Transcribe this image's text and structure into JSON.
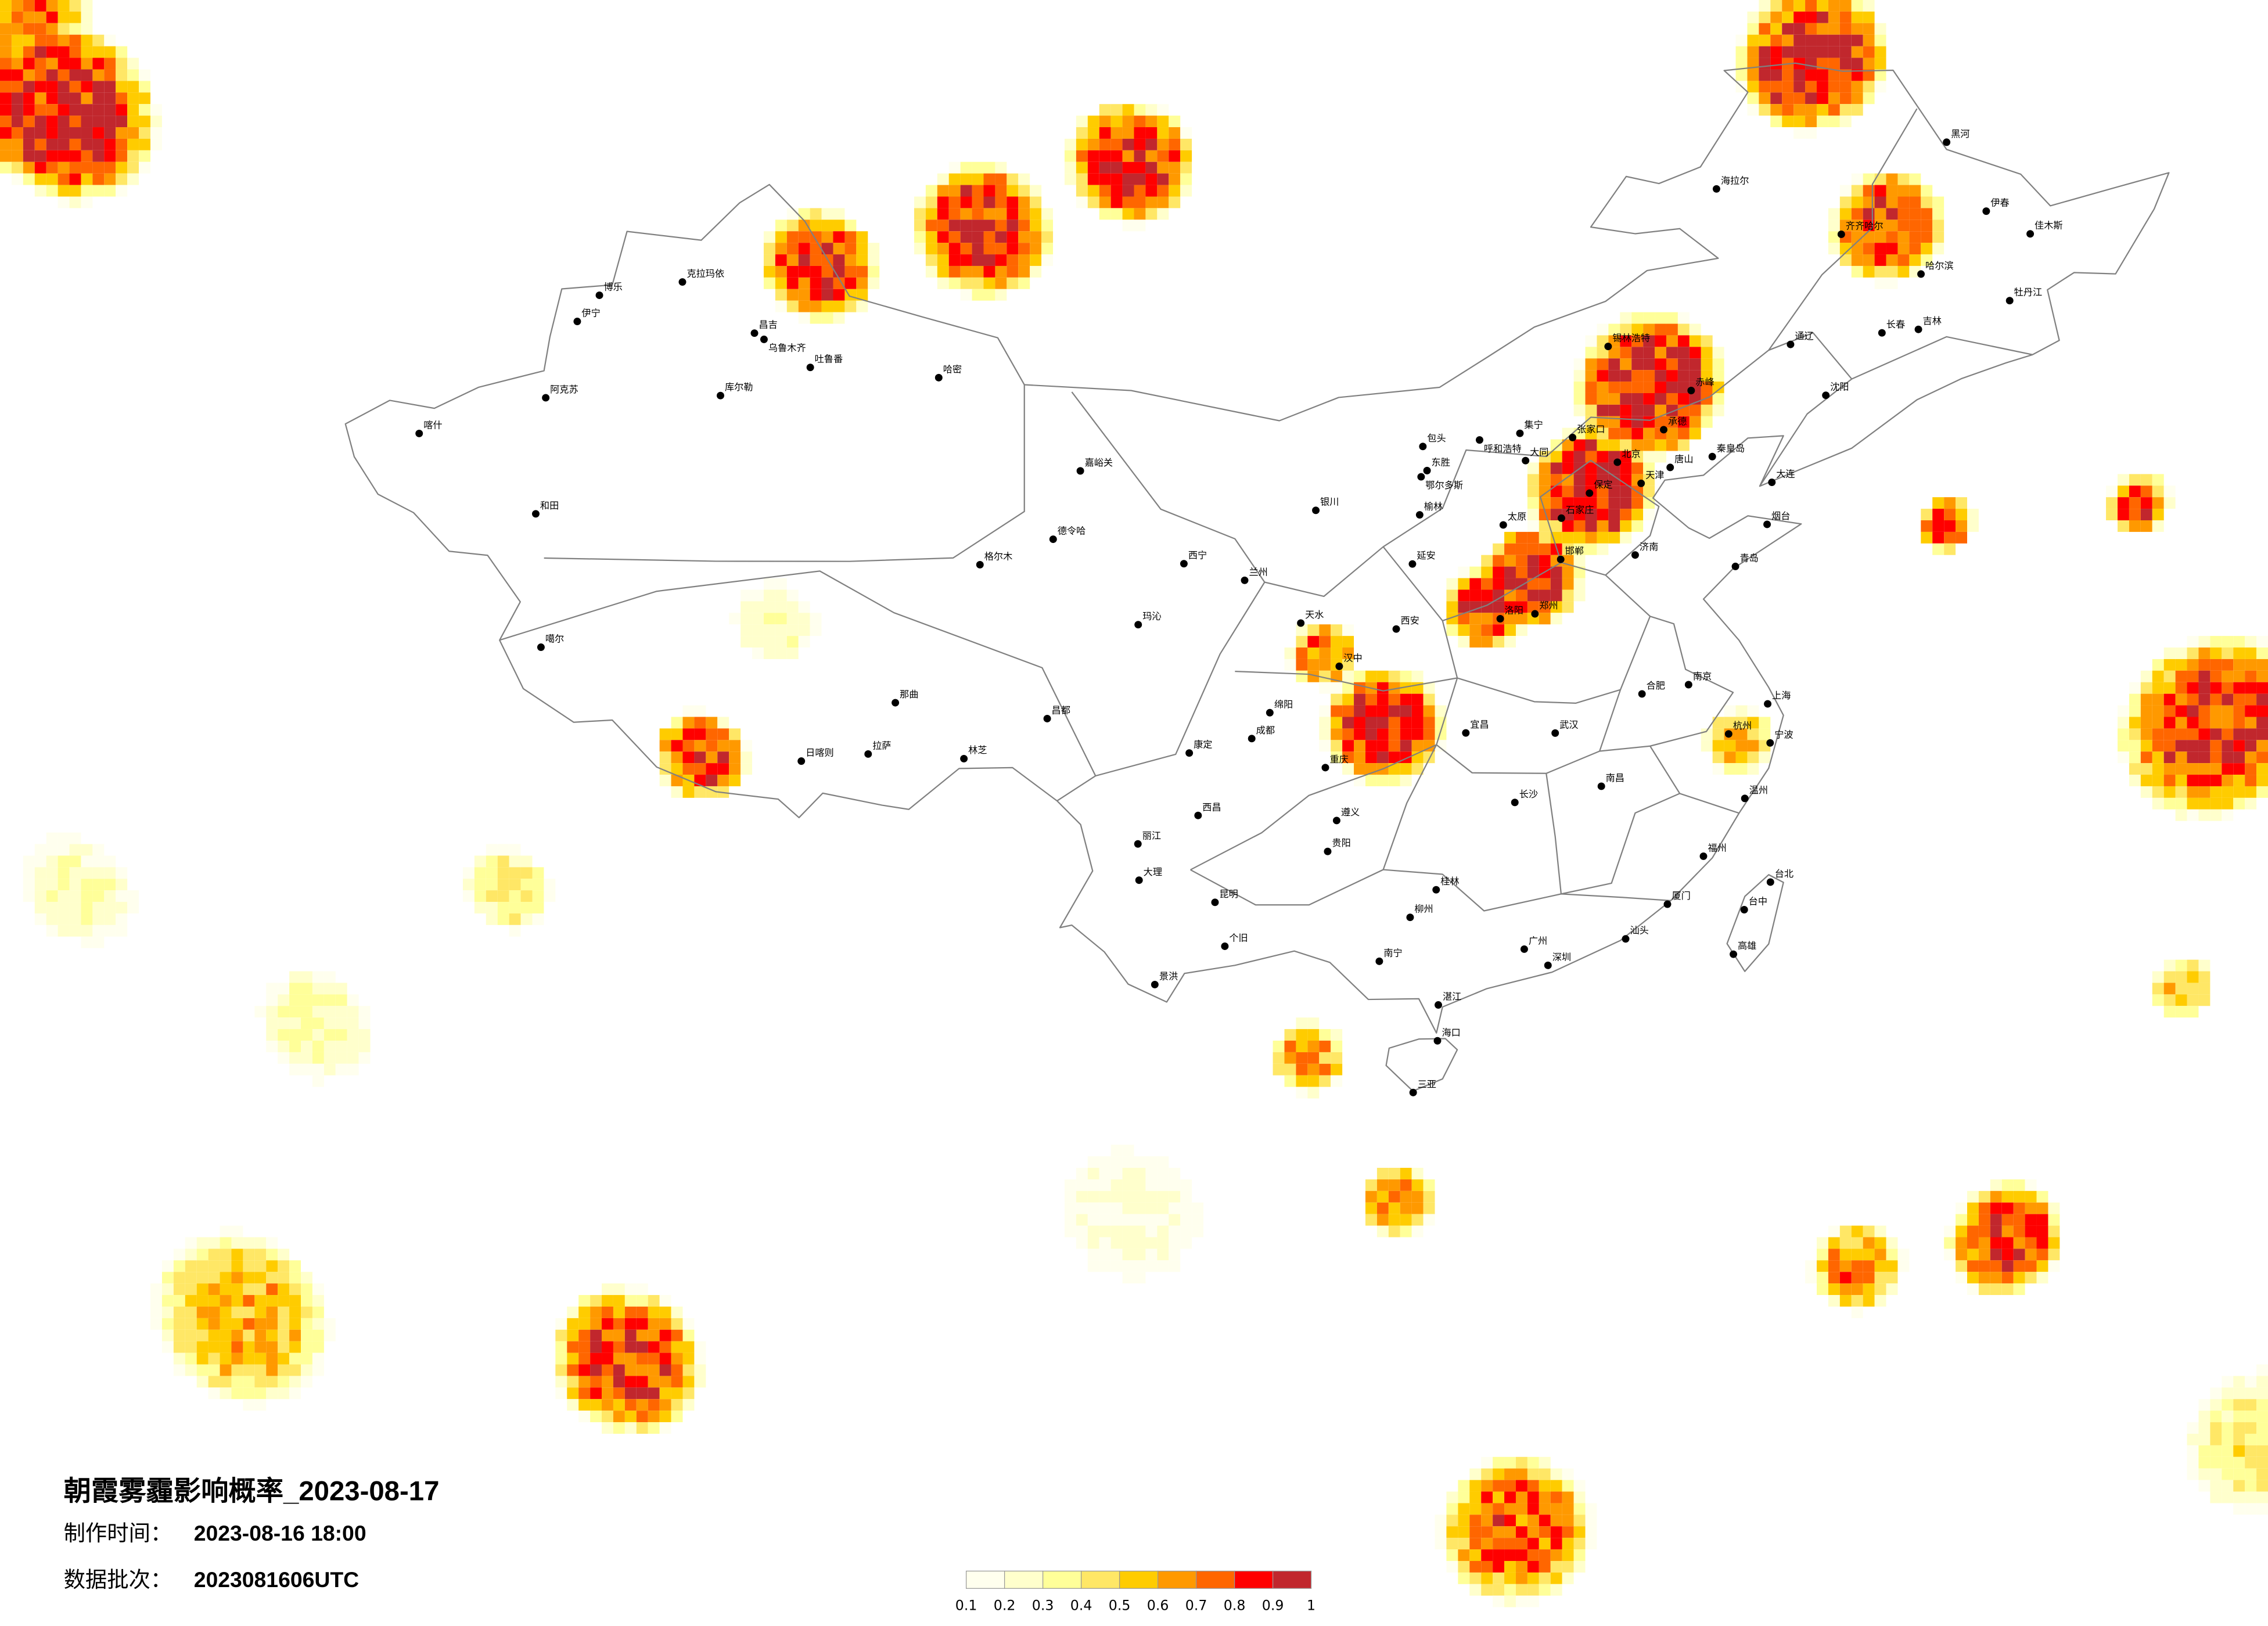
{
  "title": "朝霞雾霾影响概率_2023-08-17",
  "production_time": {
    "label": "制作时间：",
    "value": "2023-08-16 18:00"
  },
  "data_batch": {
    "label": "数据批次：",
    "value": "2023081606UTC"
  },
  "legend": {
    "ticks": [
      "0.1",
      "0.2",
      "0.3",
      "0.4",
      "0.5",
      "0.6",
      "0.7",
      "0.8",
      "0.9",
      "1"
    ],
    "colors": [
      "#FFFFEE",
      "#FFFFCC",
      "#FFFF99",
      "#FFE766",
      "#FFCC00",
      "#FF9900",
      "#FF6600",
      "#FF0000",
      "#C1272D"
    ]
  },
  "border_color": "#808080",
  "haze_regions": [
    {
      "lon": 117.5,
      "lat": 42.5,
      "r": 2.6,
      "p": 1.0
    },
    {
      "lon": 115.5,
      "lat": 39.0,
      "r": 2.2,
      "p": 1.0
    },
    {
      "lon": 113.5,
      "lat": 36.0,
      "r": 1.8,
      "p": 0.97
    },
    {
      "lon": 112.0,
      "lat": 35.0,
      "r": 1.5,
      "p": 0.9
    },
    {
      "lon": 123.0,
      "lat": 53.5,
      "r": 2.6,
      "p": 0.97
    },
    {
      "lon": 125.5,
      "lat": 47.5,
      "r": 2.0,
      "p": 0.9
    },
    {
      "lon": 64.0,
      "lat": 49.0,
      "r": 3.2,
      "p": 0.97
    },
    {
      "lon": 62.5,
      "lat": 53.0,
      "r": 2.5,
      "p": 0.8
    },
    {
      "lon": 89.5,
      "lat": 46.5,
      "r": 2.0,
      "p": 0.97
    },
    {
      "lon": 95.0,
      "lat": 48.0,
      "r": 2.4,
      "p": 0.92
    },
    {
      "lon": 100.0,
      "lat": 50.5,
      "r": 2.2,
      "p": 0.92
    },
    {
      "lon": 108.5,
      "lat": 31.0,
      "r": 2.1,
      "p": 0.95
    },
    {
      "lon": 106.5,
      "lat": 33.5,
      "r": 1.2,
      "p": 0.8
    },
    {
      "lon": 136.5,
      "lat": 29.0,
      "r": 3.2,
      "p": 0.92
    },
    {
      "lon": 127.5,
      "lat": 37.0,
      "r": 1.0,
      "p": 0.8
    },
    {
      "lon": 134.0,
      "lat": 37.0,
      "r": 1.1,
      "p": 0.85
    },
    {
      "lon": 85.5,
      "lat": 29.2,
      "r": 1.6,
      "p": 0.88
    },
    {
      "lon": 106.0,
      "lat": 19.5,
      "r": 1.3,
      "p": 0.7
    },
    {
      "lon": 83.0,
      "lat": 8.0,
      "r": 2.6,
      "p": 0.88
    },
    {
      "lon": 70.0,
      "lat": 8.0,
      "r": 3.0,
      "p": 0.65
    },
    {
      "lon": 129.5,
      "lat": 12.0,
      "r": 2.0,
      "p": 0.88
    },
    {
      "lon": 124.5,
      "lat": 11.5,
      "r": 1.6,
      "p": 0.72
    },
    {
      "lon": 113.0,
      "lat": 3.0,
      "r": 2.6,
      "p": 0.82
    },
    {
      "lon": 72.5,
      "lat": 18.5,
      "r": 2.0,
      "p": 0.35
    },
    {
      "lon": 109.0,
      "lat": 14.5,
      "r": 1.3,
      "p": 0.7
    },
    {
      "lon": 135.5,
      "lat": 20.0,
      "r": 1.1,
      "p": 0.6
    },
    {
      "lon": 120.5,
      "lat": 30.0,
      "r": 1.2,
      "p": 0.6
    },
    {
      "lon": 88.0,
      "lat": 34.0,
      "r": 1.5,
      "p": 0.3
    },
    {
      "lon": 64.5,
      "lat": 22.0,
      "r": 2.0,
      "p": 0.3
    },
    {
      "lon": 100.0,
      "lat": 14.0,
      "r": 2.5,
      "p": 0.25
    },
    {
      "lon": 138.0,
      "lat": 4.0,
      "r": 2.5,
      "p": 0.45
    },
    {
      "lon": 79.0,
      "lat": 24.0,
      "r": 1.5,
      "p": 0.45
    }
  ],
  "cities": [
    {
      "name": "喀什",
      "lon": 75.99,
      "lat": 39.47
    },
    {
      "name": "和田",
      "lon": 79.92,
      "lat": 37.11
    },
    {
      "name": "阿克苏",
      "lon": 80.26,
      "lat": 41.17
    },
    {
      "name": "伊宁",
      "lon": 81.32,
      "lat": 43.92
    },
    {
      "name": "博乐",
      "lon": 82.07,
      "lat": 44.9
    },
    {
      "name": "克拉玛依",
      "lon": 84.87,
      "lat": 45.6
    },
    {
      "name": "昌吉",
      "lon": 87.3,
      "lat": 44.01
    },
    {
      "name": "乌鲁木齐",
      "lon": 87.62,
      "lat": 43.82
    },
    {
      "name": "吐鲁番",
      "lon": 89.18,
      "lat": 42.95
    },
    {
      "name": "哈密",
      "lon": 93.51,
      "lat": 42.83
    },
    {
      "name": "库尔勒",
      "lon": 86.15,
      "lat": 41.76
    },
    {
      "name": "噶尔",
      "lon": 80.1,
      "lat": 32.5
    },
    {
      "name": "日喀则",
      "lon": 88.88,
      "lat": 29.27
    },
    {
      "name": "拉萨",
      "lon": 91.13,
      "lat": 29.65
    },
    {
      "name": "那曲",
      "lon": 92.05,
      "lat": 31.48
    },
    {
      "name": "林芝",
      "lon": 94.36,
      "lat": 29.65
    },
    {
      "name": "昌都",
      "lon": 97.17,
      "lat": 31.14
    },
    {
      "name": "格尔木",
      "lon": 94.9,
      "lat": 36.4
    },
    {
      "name": "德令哈",
      "lon": 97.37,
      "lat": 37.37
    },
    {
      "name": "西宁",
      "lon": 101.78,
      "lat": 36.62
    },
    {
      "name": "兰州",
      "lon": 103.83,
      "lat": 36.06
    },
    {
      "name": "嘉峪关",
      "lon": 98.29,
      "lat": 39.77
    },
    {
      "name": "银川",
      "lon": 106.23,
      "lat": 38.49
    },
    {
      "name": "呼和浩特",
      "lon": 111.75,
      "lat": 40.84
    },
    {
      "name": "包头",
      "lon": 109.84,
      "lat": 40.66
    },
    {
      "name": "东胜",
      "lon": 109.98,
      "lat": 39.82
    },
    {
      "name": "集宁",
      "lon": 113.11,
      "lat": 41.03
    },
    {
      "name": "张家口",
      "lon": 114.89,
      "lat": 40.82
    },
    {
      "name": "锡林浩特",
      "lon": 116.09,
      "lat": 43.93
    },
    {
      "name": "海拉尔",
      "lon": 119.74,
      "lat": 49.21
    },
    {
      "name": "齐齐哈尔",
      "lon": 123.95,
      "lat": 47.35
    },
    {
      "name": "哈尔滨",
      "lon": 126.64,
      "lat": 45.75
    },
    {
      "name": "长春",
      "lon": 125.32,
      "lat": 43.82
    },
    {
      "name": "吉林",
      "lon": 126.55,
      "lat": 43.84
    },
    {
      "name": "沈阳",
      "lon": 123.43,
      "lat": 41.8
    },
    {
      "name": "大连",
      "lon": 121.61,
      "lat": 38.91
    },
    {
      "name": "牡丹江",
      "lon": 129.63,
      "lat": 44.55
    },
    {
      "name": "佳木斯",
      "lon": 130.32,
      "lat": 46.8
    },
    {
      "name": "北京",
      "lon": 116.4,
      "lat": 39.9
    },
    {
      "name": "天津",
      "lon": 117.2,
      "lat": 39.13
    },
    {
      "name": "唐山",
      "lon": 118.18,
      "lat": 39.63
    },
    {
      "name": "承德",
      "lon": 117.96,
      "lat": 40.95
    },
    {
      "name": "秦皇岛",
      "lon": 119.6,
      "lat": 39.93
    },
    {
      "name": "保定",
      "lon": 115.46,
      "lat": 38.87
    },
    {
      "name": "石家庄",
      "lon": 114.51,
      "lat": 38.04
    },
    {
      "name": "大同",
      "lon": 113.3,
      "lat": 40.08
    },
    {
      "name": "太原",
      "lon": 112.55,
      "lat": 37.87
    },
    {
      "name": "邯郸",
      "lon": 114.49,
      "lat": 36.61
    },
    {
      "name": "济南",
      "lon": 117.0,
      "lat": 36.65
    },
    {
      "name": "青岛",
      "lon": 120.38,
      "lat": 36.07
    },
    {
      "name": "烟台",
      "lon": 121.45,
      "lat": 37.46
    },
    {
      "name": "郑州",
      "lon": 113.62,
      "lat": 34.75
    },
    {
      "name": "洛阳",
      "lon": 112.45,
      "lat": 34.62
    },
    {
      "name": "西安",
      "lon": 108.94,
      "lat": 34.34
    },
    {
      "name": "延安",
      "lon": 109.49,
      "lat": 36.59
    },
    {
      "name": "榆林",
      "lon": 109.73,
      "lat": 38.29
    },
    {
      "name": "南京",
      "lon": 118.8,
      "lat": 32.06
    },
    {
      "name": "合肥",
      "lon": 117.23,
      "lat": 31.82
    },
    {
      "name": "上海",
      "lon": 121.47,
      "lat": 31.23
    },
    {
      "name": "杭州",
      "lon": 120.15,
      "lat": 30.27
    },
    {
      "name": "宁波",
      "lon": 121.55,
      "lat": 29.87
    },
    {
      "name": "温州",
      "lon": 120.7,
      "lat": 28.0
    },
    {
      "name": "武汉",
      "lon": 114.3,
      "lat": 30.59
    },
    {
      "name": "宜昌",
      "lon": 111.29,
      "lat": 30.69
    },
    {
      "name": "长沙",
      "lon": 112.94,
      "lat": 28.23
    },
    {
      "name": "南昌",
      "lon": 115.86,
      "lat": 28.68
    },
    {
      "name": "福州",
      "lon": 119.3,
      "lat": 26.08
    },
    {
      "name": "厦门",
      "lon": 118.09,
      "lat": 24.48
    },
    {
      "name": "台北",
      "lon": 121.56,
      "lat": 25.04
    },
    {
      "name": "台中",
      "lon": 120.68,
      "lat": 24.14
    },
    {
      "name": "高雄",
      "lon": 120.31,
      "lat": 22.62
    },
    {
      "name": "广州",
      "lon": 113.26,
      "lat": 23.13
    },
    {
      "name": "深圳",
      "lon": 114.06,
      "lat": 22.54
    },
    {
      "name": "汕头",
      "lon": 116.68,
      "lat": 23.35
    },
    {
      "name": "湛江",
      "lon": 110.36,
      "lat": 21.27
    },
    {
      "name": "海口",
      "lon": 110.33,
      "lat": 20.03
    },
    {
      "name": "三亚",
      "lon": 109.51,
      "lat": 18.25
    },
    {
      "name": "南宁",
      "lon": 108.37,
      "lat": 22.82
    },
    {
      "name": "桂林",
      "lon": 110.29,
      "lat": 25.27
    },
    {
      "name": "柳州",
      "lon": 109.41,
      "lat": 24.33
    },
    {
      "name": "贵阳",
      "lon": 106.63,
      "lat": 26.65
    },
    {
      "name": "遵义",
      "lon": 106.93,
      "lat": 27.72
    },
    {
      "name": "重庆",
      "lon": 106.55,
      "lat": 29.56
    },
    {
      "name": "成都",
      "lon": 104.07,
      "lat": 30.57
    },
    {
      "name": "绵阳",
      "lon": 104.68,
      "lat": 31.47
    },
    {
      "name": "西昌",
      "lon": 102.26,
      "lat": 27.89
    },
    {
      "name": "昆明",
      "lon": 102.83,
      "lat": 24.88
    },
    {
      "name": "大理",
      "lon": 100.27,
      "lat": 25.61
    },
    {
      "name": "个旧",
      "lon": 103.16,
      "lat": 23.36
    },
    {
      "name": "景洪",
      "lon": 100.8,
      "lat": 22.0
    },
    {
      "name": "丽江",
      "lon": 100.23,
      "lat": 26.87
    },
    {
      "name": "康定",
      "lon": 101.96,
      "lat": 30.05
    },
    {
      "name": "玛沁",
      "lon": 100.24,
      "lat": 34.48
    },
    {
      "name": "天水",
      "lon": 105.72,
      "lat": 34.58
    },
    {
      "name": "汉中",
      "lon": 107.02,
      "lat": 33.07
    },
    {
      "name": "鄂尔多斯",
      "lon": 109.78,
      "lat": 39.61
    },
    {
      "name": "赤峰",
      "lon": 118.89,
      "lat": 42.26
    },
    {
      "name": "通辽",
      "lon": 122.24,
      "lat": 43.65
    },
    {
      "name": "黑河",
      "lon": 127.5,
      "lat": 50.25
    },
    {
      "name": "伊春",
      "lon": 128.84,
      "lat": 47.73
    }
  ]
}
